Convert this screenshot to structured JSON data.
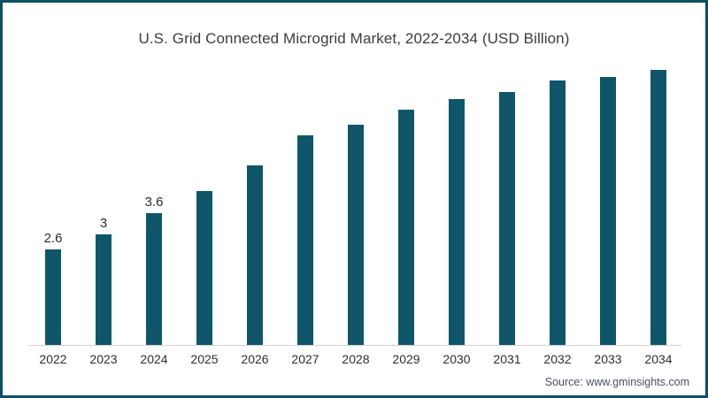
{
  "frame": {
    "border_color": "#0c4f66",
    "background_color": "#ffffff"
  },
  "chart_data": {
    "type": "bar",
    "title": "U.S. Grid Connected Microgrid Market, 2022-2034 (USD Billion)",
    "categories": [
      "2022",
      "2023",
      "2024",
      "2025",
      "2026",
      "2027",
      "2028",
      "2029",
      "2030",
      "2031",
      "2032",
      "2033",
      "2034"
    ],
    "values": [
      2.6,
      3,
      3.6,
      4.2,
      4.9,
      5.7,
      6,
      6.4,
      6.7,
      6.9,
      7.2,
      7.3,
      7.5
    ],
    "data_labels": [
      "2.6",
      "3",
      "3.6",
      null,
      null,
      null,
      null,
      null,
      null,
      null,
      null,
      null,
      null
    ],
    "bar_color": "#0f566b",
    "axis_line_color": "#d4d4d4",
    "xlabel": "",
    "ylabel": "",
    "ylim": [
      0,
      7.8
    ],
    "grid": false,
    "legend": null
  },
  "source": {
    "text": "Source: www.gminsights.com"
  }
}
